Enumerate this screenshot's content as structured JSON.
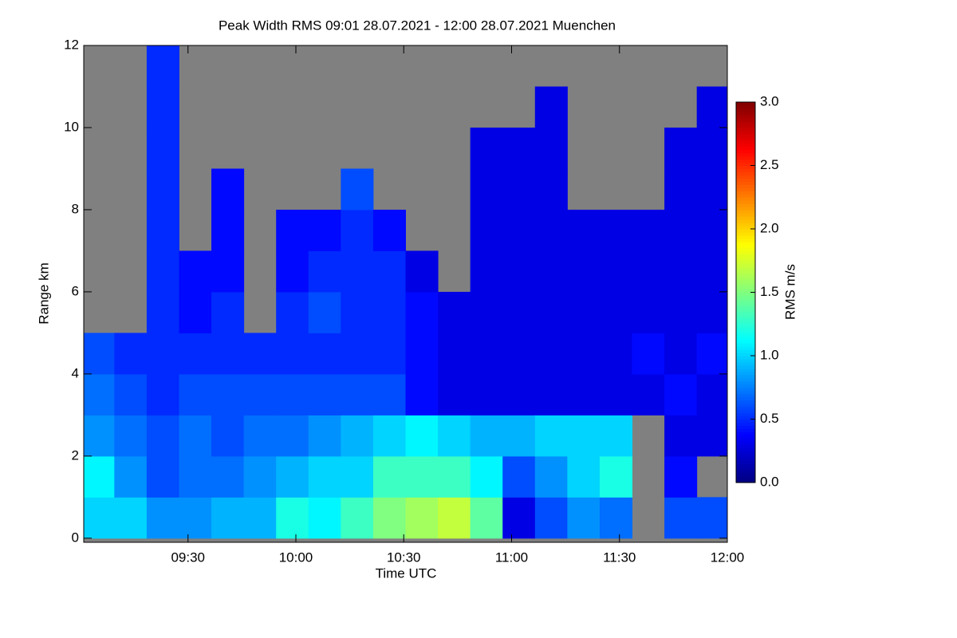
{
  "chart_data": {
    "type": "heatmap",
    "title": "Peak Width RMS   09:01 28.07.2021 - 12:00 28.07.2021 Muenchen",
    "x_label": "Time UTC",
    "y_label": "Range km",
    "colorbar_label": "RMS m/s",
    "colormap": "jet",
    "missing_color": "#808080",
    "x": [
      545,
      554,
      563,
      572,
      581,
      590,
      599,
      608,
      617,
      626,
      635,
      644,
      653,
      662,
      671,
      680,
      689,
      698,
      707,
      716
    ],
    "y": [
      0.5,
      1.5,
      2.5,
      3.5,
      4.5,
      5.5,
      6.5,
      7.5,
      8.5,
      9.5,
      10.5,
      11.5
    ],
    "values": [
      [
        1.0,
        1.1,
        0.8,
        0.7,
        0.6,
        null,
        null,
        null,
        null,
        null,
        null,
        null
      ],
      [
        1.0,
        0.8,
        0.7,
        0.6,
        0.5,
        null,
        null,
        null,
        null,
        null,
        null,
        null
      ],
      [
        0.8,
        0.6,
        0.6,
        0.5,
        0.5,
        0.5,
        0.5,
        0.5,
        0.5,
        0.5,
        0.5,
        0.5
      ],
      [
        0.8,
        0.7,
        0.7,
        0.6,
        0.5,
        0.4,
        0.4,
        null,
        null,
        null,
        null,
        null
      ],
      [
        0.9,
        0.7,
        0.6,
        0.6,
        0.5,
        0.5,
        0.4,
        0.4,
        0.4,
        null,
        null,
        null
      ],
      [
        0.9,
        0.8,
        0.7,
        0.6,
        0.5,
        null,
        null,
        null,
        null,
        null,
        null,
        null
      ],
      [
        1.2,
        0.9,
        0.7,
        0.6,
        0.5,
        0.5,
        0.4,
        0.4,
        null,
        null,
        null,
        null
      ],
      [
        1.1,
        1.0,
        0.8,
        0.6,
        0.5,
        0.6,
        0.5,
        0.4,
        null,
        null,
        null,
        null
      ],
      [
        1.3,
        1.0,
        0.9,
        0.6,
        0.5,
        0.5,
        0.5,
        0.5,
        0.6,
        null,
        null,
        null
      ],
      [
        1.5,
        1.3,
        1.0,
        0.6,
        0.5,
        0.5,
        0.5,
        0.4,
        null,
        null,
        null,
        null
      ],
      [
        1.6,
        1.3,
        1.1,
        0.4,
        0.4,
        0.4,
        0.3,
        null,
        null,
        null,
        null,
        null
      ],
      [
        1.7,
        1.3,
        1.0,
        0.3,
        0.3,
        0.3,
        null,
        null,
        null,
        null,
        null,
        null
      ],
      [
        1.4,
        1.1,
        0.9,
        0.3,
        0.3,
        0.3,
        0.3,
        0.3,
        0.3,
        0.3,
        null,
        null
      ],
      [
        0.3,
        0.6,
        0.9,
        0.3,
        0.3,
        0.3,
        0.3,
        0.3,
        0.3,
        0.3,
        null,
        null
      ],
      [
        0.6,
        0.8,
        1.0,
        0.3,
        0.3,
        0.3,
        0.3,
        0.3,
        0.3,
        0.3,
        0.3,
        null
      ],
      [
        0.8,
        1.0,
        1.0,
        0.3,
        0.3,
        0.3,
        0.3,
        0.3,
        null,
        null,
        null,
        null
      ],
      [
        0.7,
        1.2,
        1.0,
        0.3,
        0.3,
        0.3,
        0.3,
        0.3,
        null,
        null,
        null,
        null
      ],
      [
        null,
        null,
        null,
        0.3,
        0.4,
        0.3,
        0.3,
        0.3,
        null,
        null,
        null,
        null
      ],
      [
        0.6,
        0.4,
        0.3,
        0.4,
        0.3,
        0.3,
        0.3,
        0.3,
        0.3,
        0.3,
        null,
        null
      ],
      [
        0.6,
        null,
        0.3,
        0.3,
        0.4,
        0.3,
        0.3,
        0.3,
        0.3,
        0.3,
        0.3,
        null
      ]
    ],
    "xlim": [
      541,
      720
    ],
    "xticks": [
      {
        "value": 570,
        "label": "09:30"
      },
      {
        "value": 600,
        "label": "10:00"
      },
      {
        "value": 630,
        "label": "10:30"
      },
      {
        "value": 660,
        "label": "11:00"
      },
      {
        "value": 690,
        "label": "11:30"
      },
      {
        "value": 720,
        "label": "12:00"
      }
    ],
    "ylim": [
      -0.1,
      12
    ],
    "yticks": [
      0,
      2,
      4,
      6,
      8,
      10,
      12
    ],
    "zlim": [
      0,
      3
    ],
    "zticks": [
      {
        "value": 0,
        "label": "0.0"
      },
      0.5,
      {
        "value": 1,
        "label": "1.0"
      },
      1.5,
      {
        "value": 2,
        "label": "2.0"
      },
      2.5,
      {
        "value": 3,
        "label": "3.0"
      }
    ]
  }
}
